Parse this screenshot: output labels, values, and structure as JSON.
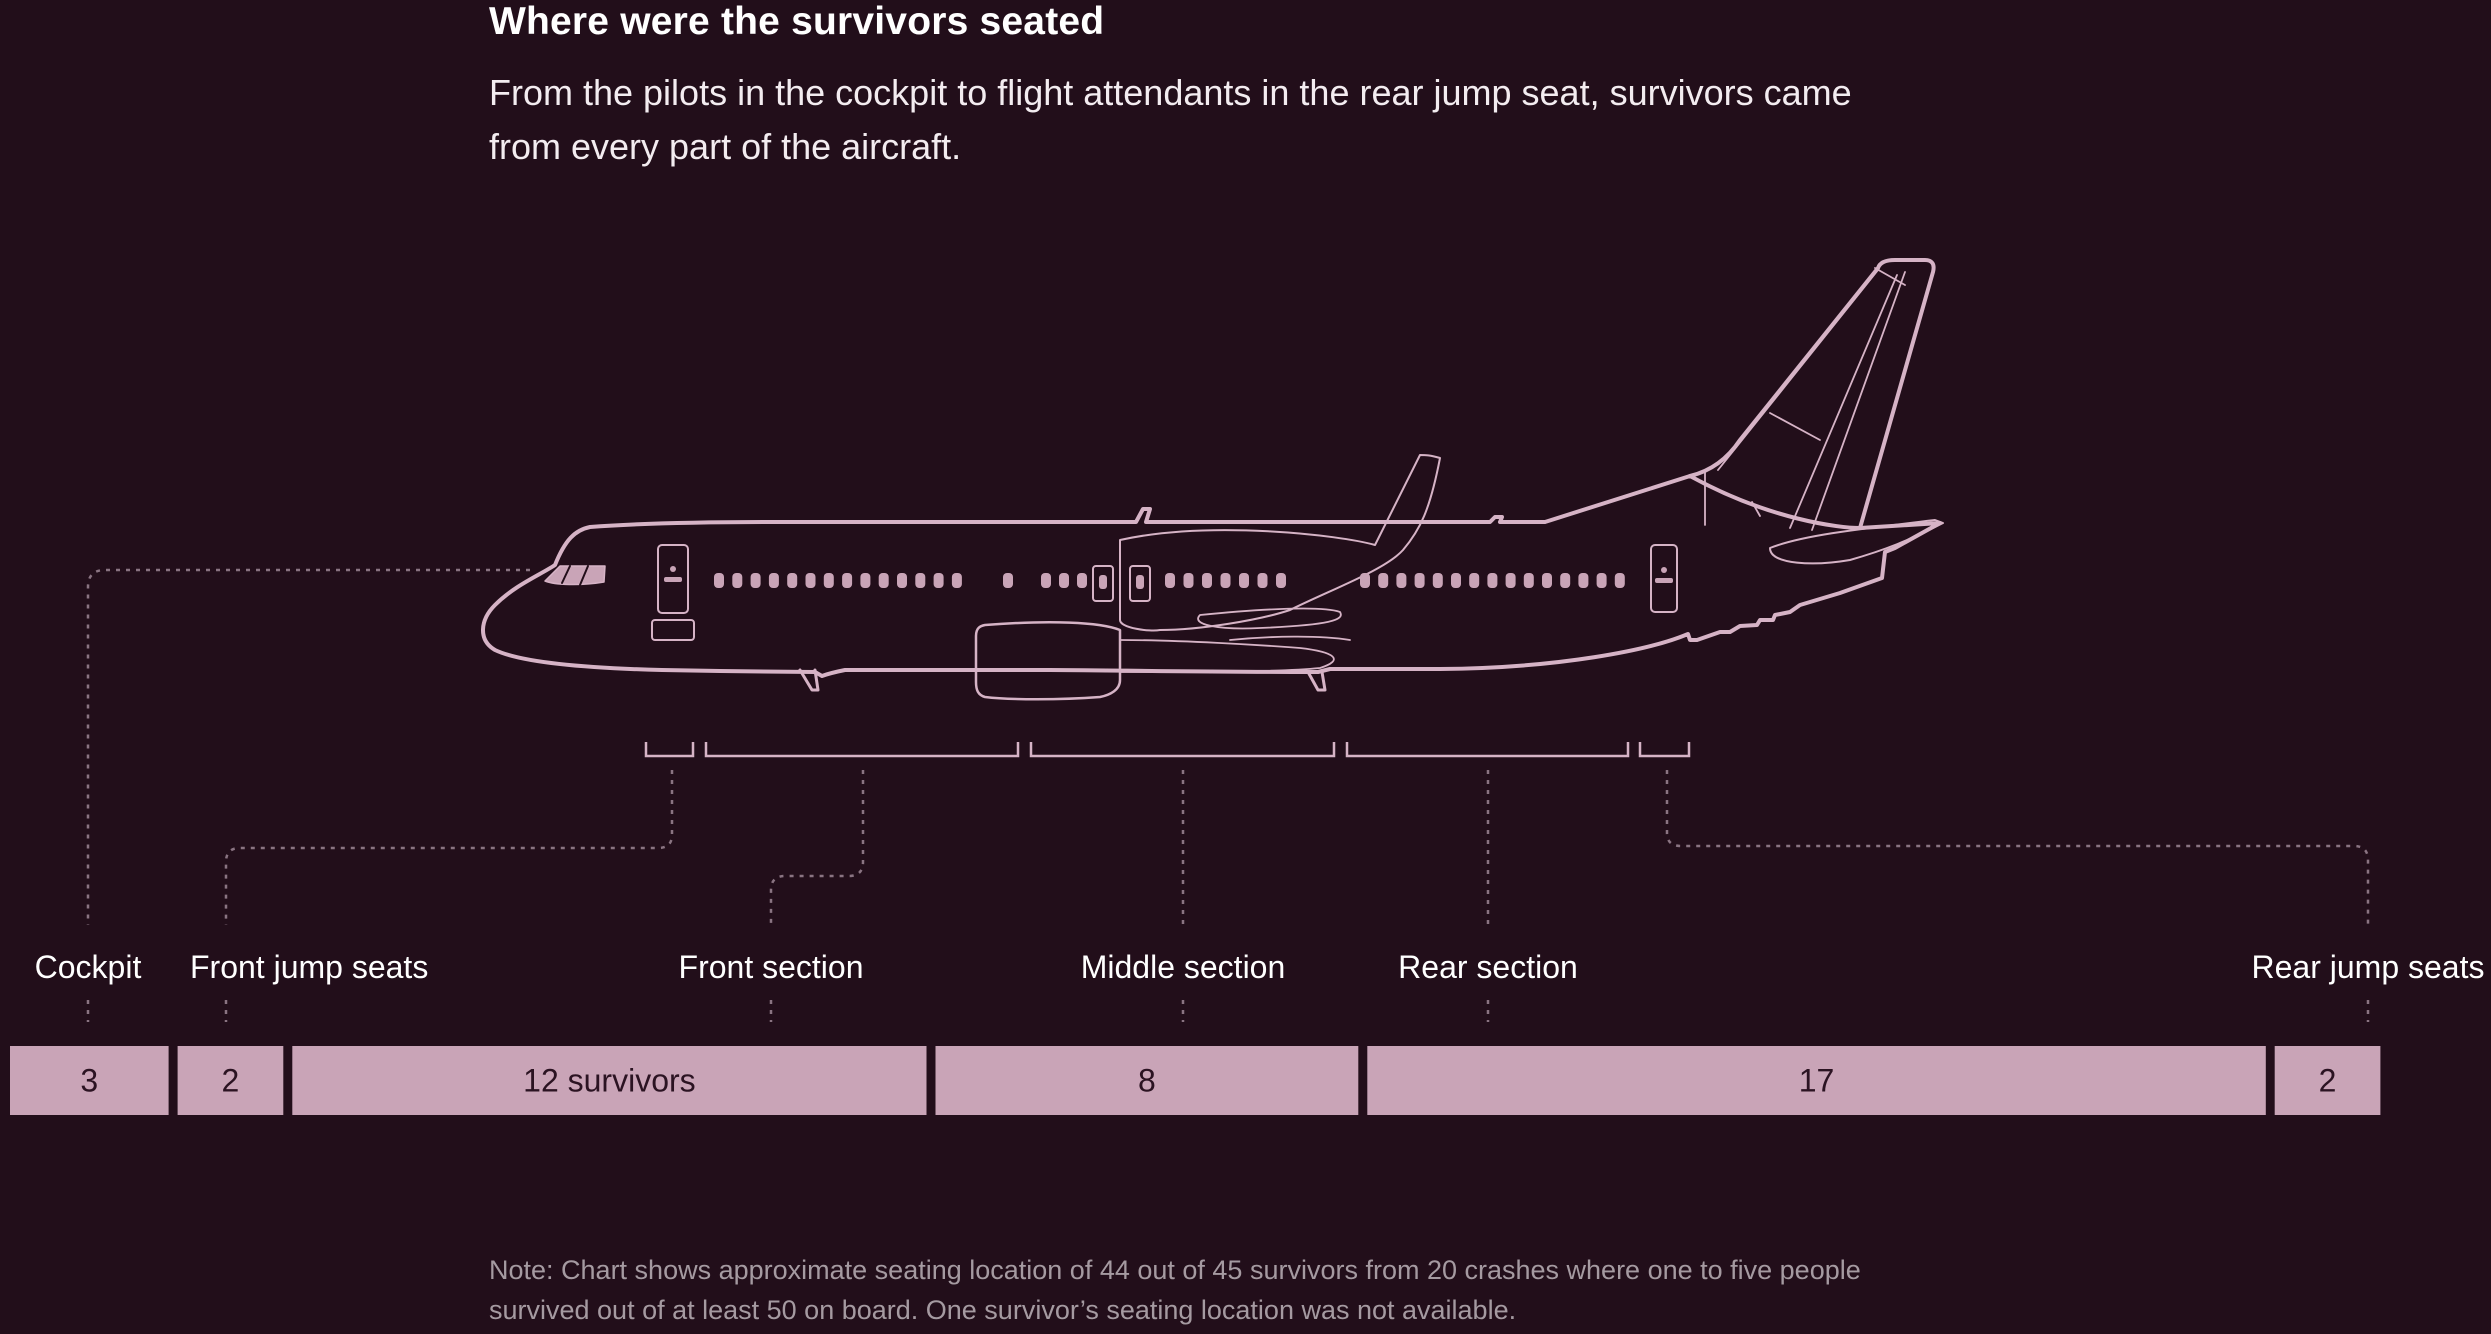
{
  "title": "Where were the survivors seated",
  "subtitle": "From the pilots in the cockpit to flight attendants in the rear jump seat, survivors came from every part of the aircraft.",
  "note": "Note: Chart shows approximate seating location of 44 out of 45 survivors from 20 crashes where one to five people survived out of at least 50 on board. One survivor’s seating location was not available.",
  "colors": {
    "background": "#220e1a",
    "bar": "#c9a4b7",
    "outline": "#d6b3c6",
    "leader": "#8a7482"
  },
  "chart_data": {
    "type": "bar",
    "orientation": "horizontal-stacked",
    "categories": [
      "Cockpit",
      "Front jump seats",
      "Front section",
      "Middle section",
      "Rear section",
      "Rear jump seats"
    ],
    "values": [
      3,
      2,
      12,
      8,
      17,
      2
    ],
    "value_labels": [
      "3",
      "2",
      "12 survivors",
      "8",
      "17",
      "2"
    ],
    "total": 44
  }
}
